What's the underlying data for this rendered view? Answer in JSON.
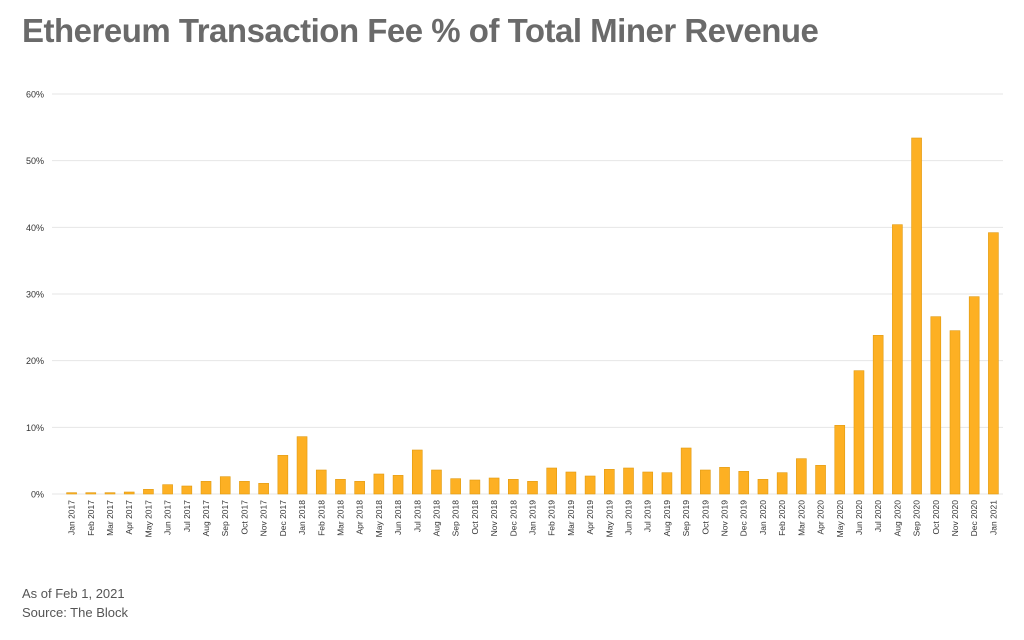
{
  "title": "Ethereum Transaction Fee % of Total Miner Revenue",
  "footer": {
    "as_of": "As of Feb 1, 2021",
    "source": "Source: The Block"
  },
  "colors": {
    "bar": "#fdb023",
    "bar_stroke": "#e09a10",
    "grid": "#e6e6e6",
    "title": "#6a6a6a",
    "axis_text": "#333333"
  },
  "chart_data": {
    "type": "bar",
    "title": "Ethereum Transaction Fee % of Total Miner Revenue",
    "xlabel": "",
    "ylabel": "",
    "ylim": [
      0,
      60
    ],
    "yticks": [
      0,
      10,
      20,
      30,
      40,
      50,
      60
    ],
    "ytick_labels": [
      "0%",
      "10%",
      "20%",
      "30%",
      "40%",
      "50%",
      "60%"
    ],
    "grid": true,
    "legend": "none",
    "categories": [
      "Jan 2017",
      "Feb 2017",
      "Mar 2017",
      "Apr 2017",
      "May 2017",
      "Jun 2017",
      "Jul 2017",
      "Aug 2017",
      "Sep 2017",
      "Oct 2017",
      "Nov 2017",
      "Dec 2017",
      "Jan 2018",
      "Feb 2018",
      "Mar 2018",
      "Apr 2018",
      "May 2018",
      "Jun 2018",
      "Jul 2018",
      "Aug 2018",
      "Sep 2018",
      "Oct 2018",
      "Nov 2018",
      "Dec 2018",
      "Jan 2019",
      "Feb 2019",
      "Mar 2019",
      "Apr 2019",
      "May 2019",
      "Jun 2019",
      "Jul 2019",
      "Aug 2019",
      "Sep 2019",
      "Oct 2019",
      "Nov 2019",
      "Dec 2019",
      "Jan 2020",
      "Feb 2020",
      "Mar 2020",
      "Apr 2020",
      "May 2020",
      "Jun 2020",
      "Jul 2020",
      "Aug 2020",
      "Sep 2020",
      "Oct 2020",
      "Nov 2020",
      "Dec 2020",
      "Jan 2021"
    ],
    "values": [
      0.2,
      0.2,
      0.2,
      0.3,
      0.7,
      1.4,
      1.2,
      1.9,
      2.6,
      1.9,
      1.6,
      5.8,
      8.6,
      3.6,
      2.2,
      1.9,
      3.0,
      2.8,
      6.6,
      3.6,
      2.3,
      2.1,
      2.4,
      2.2,
      1.9,
      3.9,
      3.3,
      2.7,
      3.7,
      3.9,
      3.3,
      3.2,
      6.9,
      3.6,
      4.0,
      3.4,
      2.2,
      3.2,
      5.3,
      4.3,
      10.3,
      18.5,
      23.8,
      40.4,
      53.4,
      26.6,
      24.5,
      29.6,
      39.2
    ]
  }
}
